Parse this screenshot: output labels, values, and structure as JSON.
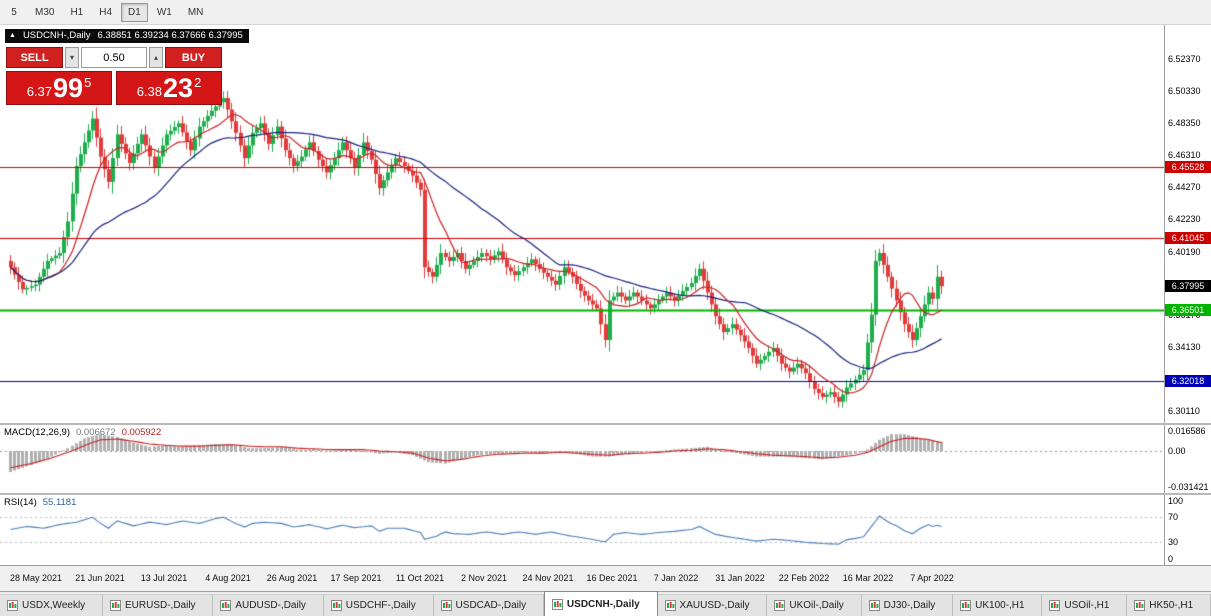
{
  "toolbar": {
    "timeframes": [
      {
        "label": "5",
        "active": false
      },
      {
        "label": "M30",
        "active": false
      },
      {
        "label": "H1",
        "active": false
      },
      {
        "label": "H4",
        "active": false
      },
      {
        "label": "D1",
        "active": true
      },
      {
        "label": "W1",
        "active": false
      },
      {
        "label": "MN",
        "active": false
      }
    ]
  },
  "title": {
    "expand_icon": "▲",
    "symbol_timeframe": "USDCNH-,Daily",
    "ohlc": "6.38851 6.39234 6.37666 6.37995"
  },
  "trade_panel": {
    "sell_label": "SELL",
    "buy_label": "BUY",
    "volume": "0.50",
    "sell_price": {
      "small": "6.37",
      "big": "99",
      "sup": "5"
    },
    "buy_price": {
      "small": "6.38",
      "big": "23",
      "sup": "2"
    }
  },
  "chart_data": {
    "type": "candlestick",
    "symbol": "USDCNH-",
    "timeframe": "Daily",
    "last_price": "6.37995",
    "y_ticks": [
      "6.52370",
      "6.50330",
      "6.48350",
      "6.46310",
      "6.44270",
      "6.42230",
      "6.40190",
      "6.38150",
      "6.36170",
      "6.34130",
      "6.32090",
      "6.30110"
    ],
    "x_labels": [
      "28 May 2021",
      "21 Jun 2021",
      "13 Jul 2021",
      "4 Aug 2021",
      "26 Aug 2021",
      "17 Sep 2021",
      "11 Oct 2021",
      "2 Nov 2021",
      "24 Nov 2021",
      "16 Dec 2021",
      "7 Jan 2022",
      "31 Jan 2022",
      "22 Feb 2022",
      "16 Mar 2022",
      "7 Apr 2022"
    ],
    "levels": [
      {
        "price": 6.45528,
        "label": "6.45528",
        "color": "#cc0000",
        "thickness": 1
      },
      {
        "price": 6.41045,
        "label": "6.41045",
        "color": "#cc0000",
        "thickness": 1
      },
      {
        "price": 6.36501,
        "label": "6.36501",
        "color": "#00b400",
        "thickness": 2
      },
      {
        "price": 6.32018,
        "label": "6.32018",
        "color": "#0000bb",
        "thickness": 1
      }
    ],
    "price_badge": {
      "price": 6.37995,
      "label": "6.37995",
      "color": "#000000"
    },
    "candle_colors": {
      "up": "#1fae4d",
      "down": "#e23b3b"
    },
    "ma_fast_period": 10,
    "ma_slow_period": 34,
    "ma_fast_color": "#cc2222",
    "ma_slow_color": "#1a237e",
    "close_points": [
      [
        0,
        6.392
      ],
      [
        3,
        6.378
      ],
      [
        6,
        6.381
      ],
      [
        9,
        6.396
      ],
      [
        12,
        6.401
      ],
      [
        14,
        6.421
      ],
      [
        16,
        6.456
      ],
      [
        18,
        6.471
      ],
      [
        20,
        6.486
      ],
      [
        22,
        6.462
      ],
      [
        24,
        6.446
      ],
      [
        26,
        6.476
      ],
      [
        29,
        6.458
      ],
      [
        32,
        6.476
      ],
      [
        35,
        6.455
      ],
      [
        38,
        6.476
      ],
      [
        41,
        6.483
      ],
      [
        44,
        6.466
      ],
      [
        46,
        6.481
      ],
      [
        49,
        6.491
      ],
      [
        52,
        6.499
      ],
      [
        55,
        6.477
      ],
      [
        57,
        6.461
      ],
      [
        59,
        6.477
      ],
      [
        61,
        6.483
      ],
      [
        63,
        6.47
      ],
      [
        65,
        6.481
      ],
      [
        67,
        6.466
      ],
      [
        69,
        6.456
      ],
      [
        71,
        6.462
      ],
      [
        73,
        6.471
      ],
      [
        75,
        6.46
      ],
      [
        77,
        6.452
      ],
      [
        79,
        6.461
      ],
      [
        81,
        6.471
      ],
      [
        83,
        6.461
      ],
      [
        84,
        6.455
      ],
      [
        86,
        6.471
      ],
      [
        88,
        6.46
      ],
      [
        90,
        6.442
      ],
      [
        92,
        6.452
      ],
      [
        94,
        6.461
      ],
      [
        96,
        6.456
      ],
      [
        98,
        6.45
      ],
      [
        100,
        6.441
      ],
      [
        101,
        6.392
      ],
      [
        103,
        6.386
      ],
      [
        105,
        6.401
      ],
      [
        107,
        6.396
      ],
      [
        109,
        6.401
      ],
      [
        111,
        6.391
      ],
      [
        113,
        6.396
      ],
      [
        115,
        6.401
      ],
      [
        117,
        6.397
      ],
      [
        119,
        6.402
      ],
      [
        121,
        6.392
      ],
      [
        123,
        6.387
      ],
      [
        125,
        6.392
      ],
      [
        127,
        6.397
      ],
      [
        129,
        6.391
      ],
      [
        131,
        6.386
      ],
      [
        133,
        6.381
      ],
      [
        135,
        6.392
      ],
      [
        137,
        6.386
      ],
      [
        139,
        6.377
      ],
      [
        141,
        6.371
      ],
      [
        143,
        6.366
      ],
      [
        145,
        6.346
      ],
      [
        146,
        6.371
      ],
      [
        148,
        6.376
      ],
      [
        150,
        6.371
      ],
      [
        152,
        6.376
      ],
      [
        154,
        6.371
      ],
      [
        156,
        6.366
      ],
      [
        158,
        6.371
      ],
      [
        160,
        6.376
      ],
      [
        162,
        6.371
      ],
      [
        164,
        6.377
      ],
      [
        166,
        6.382
      ],
      [
        168,
        6.391
      ],
      [
        170,
        6.376
      ],
      [
        172,
        6.361
      ],
      [
        174,
        6.351
      ],
      [
        176,
        6.356
      ],
      [
        178,
        6.349
      ],
      [
        180,
        6.341
      ],
      [
        182,
        6.331
      ],
      [
        184,
        6.336
      ],
      [
        186,
        6.341
      ],
      [
        188,
        6.331
      ],
      [
        190,
        6.326
      ],
      [
        192,
        6.331
      ],
      [
        194,
        6.325
      ],
      [
        196,
        6.315
      ],
      [
        198,
        6.31
      ],
      [
        200,
        6.313
      ],
      [
        202,
        6.307
      ],
      [
        204,
        6.316
      ],
      [
        206,
        6.321
      ],
      [
        208,
        6.327
      ],
      [
        210,
        6.362
      ],
      [
        211,
        6.396
      ],
      [
        212,
        6.401
      ],
      [
        214,
        6.386
      ],
      [
        216,
        6.371
      ],
      [
        218,
        6.356
      ],
      [
        220,
        6.346
      ],
      [
        222,
        6.361
      ],
      [
        224,
        6.376
      ],
      [
        225,
        6.372
      ],
      [
        226,
        6.386
      ],
      [
        227,
        6.38
      ]
    ],
    "macd": {
      "label": "MACD(12,26,9)",
      "values": [
        "0.006672",
        "0.005922"
      ],
      "y_ticks": [
        "0.016586",
        "0.00",
        "-0.031421"
      ],
      "hist_color": "#b0b0b0",
      "signal_color": "#cc2222",
      "hist_points": [
        [
          0,
          -0.015,
          -0.012
        ],
        [
          5,
          -0.01,
          -0.009
        ],
        [
          10,
          -0.004,
          -0.005
        ],
        [
          14,
          0.002,
          -0.001
        ],
        [
          18,
          0.009,
          0.004
        ],
        [
          22,
          0.012,
          0.008
        ],
        [
          26,
          0.01,
          0.0085
        ],
        [
          30,
          0.006,
          0.007
        ],
        [
          34,
          0.003,
          0.005
        ],
        [
          38,
          0.004,
          0.004
        ],
        [
          42,
          0.003,
          0.0035
        ],
        [
          46,
          0.004,
          0.0035
        ],
        [
          50,
          0.005,
          0.004
        ],
        [
          54,
          0.005,
          0.0045
        ],
        [
          58,
          0.002,
          0.0035
        ],
        [
          62,
          0.002,
          0.003
        ],
        [
          66,
          0.003,
          0.003
        ],
        [
          70,
          0.001,
          0.002
        ],
        [
          74,
          0.001,
          0.0015
        ],
        [
          78,
          0.0,
          0.001
        ],
        [
          82,
          0.001,
          0.001
        ],
        [
          86,
          0.0,
          0.001
        ],
        [
          90,
          -0.002,
          0.0
        ],
        [
          94,
          -0.001,
          -0.0005
        ],
        [
          98,
          -0.003,
          -0.0015
        ],
        [
          102,
          -0.008,
          -0.005
        ],
        [
          106,
          -0.009,
          -0.007
        ],
        [
          110,
          -0.006,
          -0.006
        ],
        [
          114,
          -0.003,
          -0.004
        ],
        [
          118,
          -0.002,
          -0.0025
        ],
        [
          122,
          -0.002,
          -0.002
        ],
        [
          126,
          -0.001,
          -0.0015
        ],
        [
          130,
          -0.002,
          -0.0015
        ],
        [
          134,
          -0.001,
          -0.001
        ],
        [
          138,
          -0.002,
          -0.0015
        ],
        [
          142,
          -0.004,
          -0.0025
        ],
        [
          146,
          -0.004,
          -0.003
        ],
        [
          150,
          -0.002,
          -0.002
        ],
        [
          154,
          -0.001,
          -0.0015
        ],
        [
          158,
          0.0,
          -0.001
        ],
        [
          162,
          0.001,
          0.0
        ],
        [
          166,
          0.002,
          0.0005
        ],
        [
          170,
          0.003,
          0.0015
        ],
        [
          174,
          0.0,
          0.001
        ],
        [
          178,
          -0.002,
          -0.0005
        ],
        [
          182,
          -0.004,
          -0.002
        ],
        [
          186,
          -0.004,
          -0.003
        ],
        [
          190,
          -0.004,
          -0.0035
        ],
        [
          194,
          -0.005,
          -0.004
        ],
        [
          198,
          -0.006,
          -0.005
        ],
        [
          202,
          -0.004,
          -0.0045
        ],
        [
          206,
          -0.002,
          -0.003
        ],
        [
          209,
          0.001,
          -0.001
        ],
        [
          212,
          0.008,
          0.003
        ],
        [
          215,
          0.012,
          0.007
        ],
        [
          218,
          0.012,
          0.009
        ],
        [
          221,
          0.01,
          0.009
        ],
        [
          224,
          0.008,
          0.0082
        ],
        [
          227,
          0.0067,
          0.0059
        ]
      ]
    },
    "rsi": {
      "label": "RSI(14)",
      "value": "55.1181",
      "y_ticks": [
        "100",
        "70",
        "30",
        "0"
      ],
      "levels": [
        70,
        30
      ],
      "color": "#4a7ebb",
      "points": [
        [
          0,
          50
        ],
        [
          4,
          55
        ],
        [
          8,
          52
        ],
        [
          12,
          58
        ],
        [
          16,
          62
        ],
        [
          20,
          70
        ],
        [
          22,
          60
        ],
        [
          24,
          52
        ],
        [
          26,
          64
        ],
        [
          30,
          56
        ],
        [
          34,
          62
        ],
        [
          38,
          58
        ],
        [
          42,
          64
        ],
        [
          46,
          60
        ],
        [
          50,
          68
        ],
        [
          52,
          70
        ],
        [
          55,
          60
        ],
        [
          57,
          54
        ],
        [
          59,
          60
        ],
        [
          62,
          62
        ],
        [
          66,
          60
        ],
        [
          69,
          54
        ],
        [
          73,
          58
        ],
        [
          77,
          51
        ],
        [
          81,
          57
        ],
        [
          84,
          53
        ],
        [
          88,
          56
        ],
        [
          90,
          47
        ],
        [
          92,
          52
        ],
        [
          96,
          52
        ],
        [
          100,
          45
        ],
        [
          101,
          34
        ],
        [
          104,
          39
        ],
        [
          106,
          46
        ],
        [
          108,
          43
        ],
        [
          112,
          42
        ],
        [
          116,
          46
        ],
        [
          120,
          42
        ],
        [
          124,
          46
        ],
        [
          128,
          42
        ],
        [
          132,
          46
        ],
        [
          136,
          40
        ],
        [
          140,
          36
        ],
        [
          145,
          30
        ],
        [
          147,
          42
        ],
        [
          150,
          45
        ],
        [
          154,
          42
        ],
        [
          158,
          45
        ],
        [
          162,
          47
        ],
        [
          166,
          50
        ],
        [
          168,
          55
        ],
        [
          172,
          42
        ],
        [
          176,
          37
        ],
        [
          180,
          33
        ],
        [
          182,
          31
        ],
        [
          186,
          34
        ],
        [
          190,
          32
        ],
        [
          194,
          29
        ],
        [
          198,
          27
        ],
        [
          202,
          26
        ],
        [
          204,
          33
        ],
        [
          208,
          38
        ],
        [
          210,
          55
        ],
        [
          212,
          72
        ],
        [
          214,
          63
        ],
        [
          216,
          56
        ],
        [
          218,
          48
        ],
        [
          220,
          43
        ],
        [
          222,
          52
        ],
        [
          224,
          58
        ],
        [
          225,
          55
        ],
        [
          226,
          57
        ],
        [
          227,
          55
        ]
      ]
    }
  },
  "tabs": {
    "active_index": 5,
    "items": [
      "USDX,Weekly",
      "EURUSD-,Daily",
      "AUDUSD-,Daily",
      "USDCHF-,Daily",
      "USDCAD-,Daily",
      "USDCNH-,Daily",
      "XAUUSD-,Daily",
      "UKOil-,Daily",
      "DJ30-,Daily",
      "UK100-,H1",
      "USOil-,H1",
      "HK50-,H1"
    ]
  }
}
